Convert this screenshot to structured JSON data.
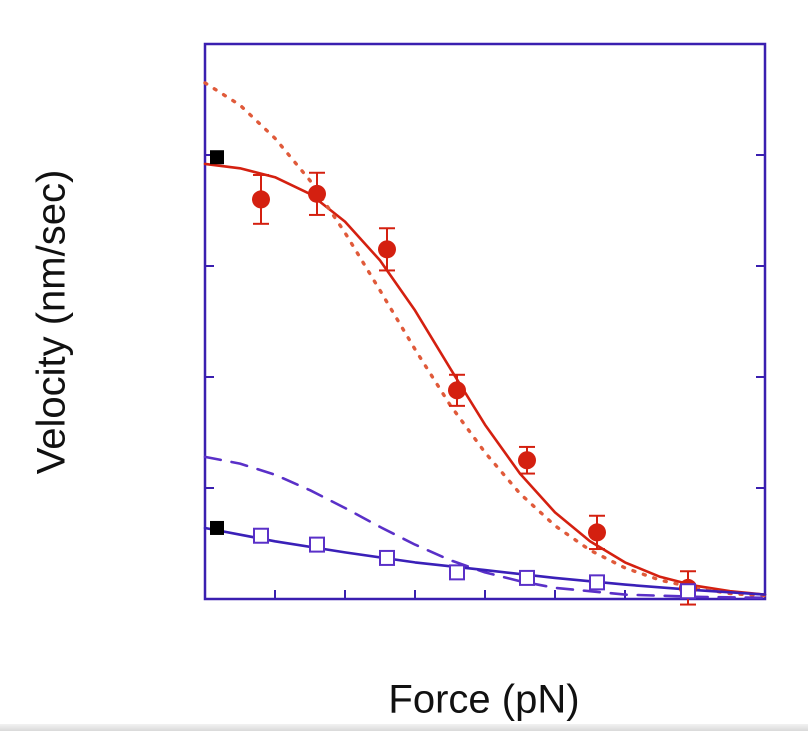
{
  "chart_data": {
    "type": "line",
    "title": "",
    "xlabel": "Force (pN)",
    "ylabel": "Velocity (nm/sec)",
    "xlim": [
      0,
      8
    ],
    "ylim": [
      0,
      5
    ],
    "x_tick_labels": [],
    "y_tick_labels": [],
    "grid": false,
    "legend": "none",
    "axis_color": "#3a1fb0",
    "series": [
      {
        "style": "filled-circle-errorbar",
        "color": "#d42010",
        "points": [
          {
            "x": 0.8,
            "y": 3.6,
            "err": 0.22
          },
          {
            "x": 1.6,
            "y": 3.65,
            "err": 0.19
          },
          {
            "x": 2.6,
            "y": 3.15,
            "err": 0.19
          },
          {
            "x": 3.6,
            "y": 1.88,
            "err": 0.14
          },
          {
            "x": 4.6,
            "y": 1.25,
            "err": 0.12
          },
          {
            "x": 5.6,
            "y": 0.6,
            "err": 0.15
          },
          {
            "x": 6.9,
            "y": 0.1,
            "err": 0.15
          }
        ]
      },
      {
        "style": "open-square-errorbar",
        "color": "#5a30c8",
        "points": [
          {
            "x": 0.8,
            "y": 0.57,
            "err": 0.06
          },
          {
            "x": 1.6,
            "y": 0.49,
            "err": 0.05
          },
          {
            "x": 2.6,
            "y": 0.37,
            "err": 0.05
          },
          {
            "x": 3.6,
            "y": 0.24,
            "err": 0.04
          },
          {
            "x": 4.6,
            "y": 0.19,
            "err": 0.04
          },
          {
            "x": 5.6,
            "y": 0.15,
            "err": 0.04
          },
          {
            "x": 6.9,
            "y": 0.07,
            "err": 0.04
          }
        ]
      },
      {
        "style": "solid-line",
        "color": "#d42010",
        "points": [
          {
            "x": 0,
            "y": 3.92
          },
          {
            "x": 0.5,
            "y": 3.88
          },
          {
            "x": 1.0,
            "y": 3.8
          },
          {
            "x": 1.5,
            "y": 3.65
          },
          {
            "x": 2.0,
            "y": 3.4
          },
          {
            "x": 2.5,
            "y": 3.05
          },
          {
            "x": 3.0,
            "y": 2.6
          },
          {
            "x": 3.5,
            "y": 2.08
          },
          {
            "x": 4.0,
            "y": 1.57
          },
          {
            "x": 4.5,
            "y": 1.13
          },
          {
            "x": 5.0,
            "y": 0.78
          },
          {
            "x": 5.5,
            "y": 0.52
          },
          {
            "x": 6.0,
            "y": 0.33
          },
          {
            "x": 6.5,
            "y": 0.2
          },
          {
            "x": 7.0,
            "y": 0.12
          },
          {
            "x": 7.5,
            "y": 0.07
          },
          {
            "x": 8.0,
            "y": 0.04
          }
        ]
      },
      {
        "style": "dotted-line",
        "color": "#e05a3a",
        "points": [
          {
            "x": 0,
            "y": 4.65
          },
          {
            "x": 0.5,
            "y": 4.45
          },
          {
            "x": 1.0,
            "y": 4.15
          },
          {
            "x": 1.5,
            "y": 3.77
          },
          {
            "x": 2.0,
            "y": 3.3
          },
          {
            "x": 2.5,
            "y": 2.78
          },
          {
            "x": 3.0,
            "y": 2.25
          },
          {
            "x": 3.5,
            "y": 1.75
          },
          {
            "x": 4.0,
            "y": 1.32
          },
          {
            "x": 4.5,
            "y": 0.95
          },
          {
            "x": 5.0,
            "y": 0.66
          },
          {
            "x": 5.5,
            "y": 0.44
          },
          {
            "x": 6.0,
            "y": 0.28
          },
          {
            "x": 6.5,
            "y": 0.17
          },
          {
            "x": 7.0,
            "y": 0.1
          },
          {
            "x": 7.5,
            "y": 0.05
          },
          {
            "x": 8.0,
            "y": 0.03
          }
        ]
      },
      {
        "style": "dashed-line",
        "color": "#5a30c8",
        "points": [
          {
            "x": 0,
            "y": 1.28
          },
          {
            "x": 0.5,
            "y": 1.22
          },
          {
            "x": 1.0,
            "y": 1.12
          },
          {
            "x": 1.5,
            "y": 0.98
          },
          {
            "x": 2.0,
            "y": 0.82
          },
          {
            "x": 2.5,
            "y": 0.65
          },
          {
            "x": 3.0,
            "y": 0.49
          },
          {
            "x": 3.5,
            "y": 0.35
          },
          {
            "x": 4.0,
            "y": 0.24
          },
          {
            "x": 4.5,
            "y": 0.16
          },
          {
            "x": 5.0,
            "y": 0.1
          },
          {
            "x": 5.5,
            "y": 0.07
          },
          {
            "x": 6.0,
            "y": 0.04
          },
          {
            "x": 6.5,
            "y": 0.03
          },
          {
            "x": 7.0,
            "y": 0.02
          },
          {
            "x": 8.0,
            "y": 0.01
          }
        ]
      },
      {
        "style": "solid-line",
        "color": "#3a20b8",
        "points": [
          {
            "x": 0,
            "y": 0.64
          },
          {
            "x": 1.0,
            "y": 0.52
          },
          {
            "x": 2.0,
            "y": 0.42
          },
          {
            "x": 3.0,
            "y": 0.33
          },
          {
            "x": 4.0,
            "y": 0.26
          },
          {
            "x": 5.0,
            "y": 0.19
          },
          {
            "x": 6.0,
            "y": 0.13
          },
          {
            "x": 7.0,
            "y": 0.08
          },
          {
            "x": 8.0,
            "y": 0.04
          }
        ]
      },
      {
        "style": "filled-square",
        "color": "#000000",
        "points": [
          {
            "x": 0,
            "y": 3.98
          },
          {
            "x": 0,
            "y": 0.64
          }
        ]
      }
    ]
  }
}
